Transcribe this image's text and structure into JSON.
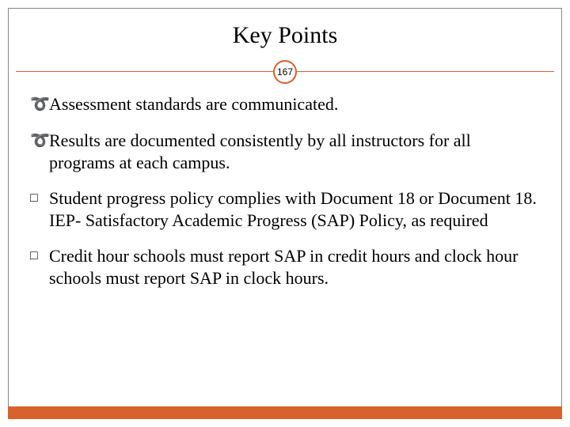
{
  "title": "Key Points",
  "page_number": "167",
  "accent_color": "#d9602a",
  "bottom_bar_color": "#d7622b",
  "border_color": "#888888",
  "text_color": "#000000",
  "background_color": "#ffffff",
  "title_fontsize": 30,
  "body_fontsize": 22,
  "bullets": [
    {
      "type": "swirl",
      "text": "Assessment standards are communicated."
    },
    {
      "type": "swirl",
      "text": "Results are documented consistently by all instructors for all programs at each campus."
    },
    {
      "type": "square",
      "text": "Student progress policy complies with Document 18 or Document 18. IEP- Satisfactory Academic Progress (SAP) Policy, as required"
    },
    {
      "type": "square",
      "text": "Credit hour schools must report SAP in credit hours and clock hour schools must report SAP in clock hours."
    }
  ]
}
